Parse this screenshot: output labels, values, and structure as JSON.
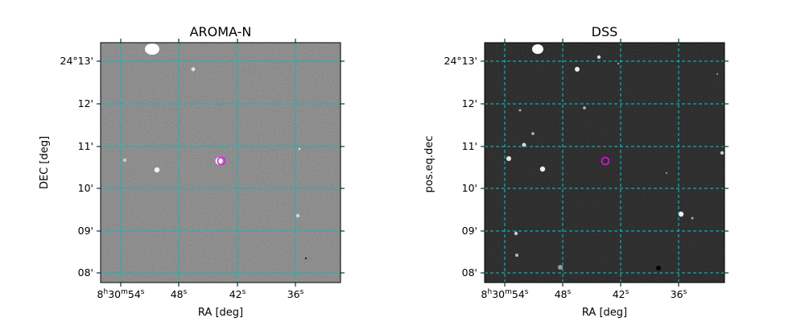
{
  "panels": [
    {
      "title": "AROMA-N",
      "xlabel": "RA [deg]",
      "ylabel": "DEC [deg]",
      "background": "#7c7c7c",
      "grid_color": "#21b2b2",
      "grid_style": "solid",
      "marker_color": "#ff00ff"
    },
    {
      "title": "DSS",
      "xlabel": "RA [deg]",
      "ylabel": "pos.eq.dec",
      "background": "#222222",
      "grid_color": "#00cccc",
      "grid_style": "dashed",
      "marker_color": "#ff00ff"
    }
  ],
  "x_ticks": [
    {
      "h": "8",
      "m": "30",
      "s": "54"
    },
    {
      "s": "48"
    },
    {
      "s": "42"
    },
    {
      "s": "36"
    }
  ],
  "y_ticks": [
    "24°13'",
    "12'",
    "11'",
    "10'",
    "09'",
    "08'"
  ]
}
